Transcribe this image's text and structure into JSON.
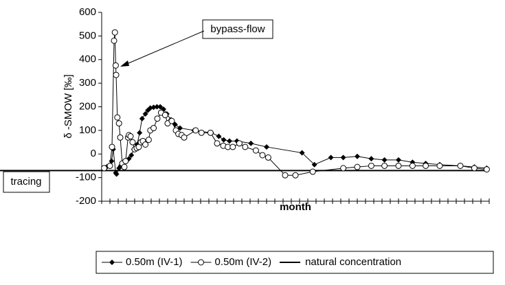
{
  "chart_data": {
    "type": "line",
    "ylabel": "δ -SMOW [‰]",
    "xlabel": "month",
    "xlim": [
      0,
      47
    ],
    "xticks": [
      0,
      1,
      2,
      3,
      4,
      5,
      6,
      7,
      8,
      9,
      10,
      11,
      12,
      13,
      14,
      15,
      16,
      17,
      18,
      19,
      20,
      21,
      22,
      23,
      24,
      25,
      26,
      27,
      28,
      29,
      30,
      31,
      32,
      33,
      34,
      35,
      36,
      37,
      38,
      39,
      40,
      41,
      42,
      43,
      44,
      45,
      46,
      47
    ],
    "ylim": [
      -200,
      600
    ],
    "yticks": [
      600,
      500,
      400,
      300,
      200,
      100,
      0,
      -100,
      -200
    ],
    "series": [
      {
        "name": "0.50m (IV-1)",
        "color": "#000000",
        "marker": "diamond",
        "x": [
          0.6,
          1.2,
          1.4,
          1.7,
          1.8,
          2.1,
          2.3,
          2.6,
          2.9,
          3.3,
          3.6,
          3.9,
          4.3,
          4.6,
          4.9,
          5.3,
          5.6,
          5.9,
          6.3,
          6.7,
          7.1,
          7.5,
          7.9,
          8.4,
          8.9,
          9.5,
          11.2,
          13.3,
          14.2,
          14.8,
          15.5,
          16.4,
          18.1,
          20,
          24.3,
          25.8,
          27.8,
          29.3,
          31,
          32.7,
          34.3,
          36,
          37.7,
          39.3,
          41,
          43.5,
          45.2,
          46.7
        ],
        "values": [
          -55,
          -30,
          20,
          -80,
          -85,
          -60,
          -50,
          -40,
          -30,
          -20,
          -5,
          20,
          40,
          90,
          150,
          170,
          185,
          195,
          198,
          200,
          200,
          190,
          170,
          145,
          125,
          110,
          100,
          90,
          75,
          60,
          55,
          55,
          45,
          30,
          5,
          -45,
          -15,
          -15,
          -10,
          -20,
          -25,
          -25,
          -35,
          -40,
          -45,
          -50,
          -55,
          -60
        ]
      },
      {
        "name": "0.50m (IV-2)",
        "color": "#000000",
        "marker": "circle",
        "x": [
          0.3,
          1,
          1.25,
          1.5,
          1.6,
          1.7,
          1.75,
          1.9,
          2.1,
          2.25,
          2.5,
          2.75,
          2.9,
          3.2,
          3.3,
          3.5,
          3.75,
          4,
          4.25,
          4.5,
          4.75,
          5,
          5.3,
          5.7,
          5.9,
          6.3,
          6.75,
          7.2,
          7.7,
          8,
          8.5,
          9,
          9.3,
          9.7,
          10,
          11.4,
          12.1,
          13.2,
          14,
          14.75,
          15.3,
          15.9,
          16.7,
          17.4,
          18.7,
          19.5,
          20.2,
          22.25,
          23.5,
          25.6,
          29.3,
          31,
          32.7,
          34.3,
          36,
          37.7,
          39.3,
          41,
          43.5,
          45.2,
          46.7
        ],
        "values": [
          -60,
          -50,
          30,
          480,
          515,
          375,
          335,
          155,
          130,
          70,
          -40,
          -55,
          -30,
          70,
          80,
          75,
          50,
          20,
          25,
          30,
          50,
          55,
          40,
          60,
          100,
          110,
          150,
          175,
          165,
          130,
          140,
          100,
          85,
          80,
          70,
          100,
          90,
          90,
          45,
          35,
          30,
          30,
          45,
          30,
          15,
          -5,
          -15,
          -90,
          -90,
          -75,
          -60,
          -55,
          -50,
          -50,
          -50,
          -50,
          -50,
          -50,
          -50,
          -60,
          -65
        ]
      }
    ],
    "hlines": [
      {
        "name": "natural concentration",
        "value": -70,
        "color": "#000000"
      }
    ],
    "annotations": [
      "bypass-flow",
      "tracing"
    ]
  }
}
